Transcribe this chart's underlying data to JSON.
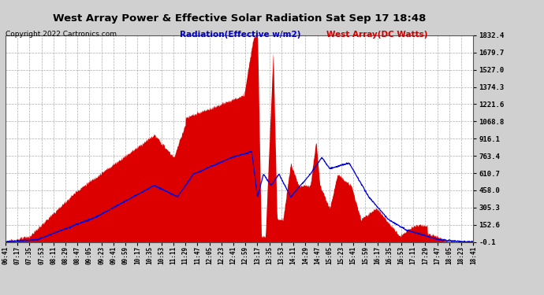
{
  "title": "West Array Power & Effective Solar Radiation Sat Sep 17 18:48",
  "copyright": "Copyright 2022 Cartronics.com",
  "legend_blue": "Radiation(Effective w/m2)",
  "legend_red": "West Array(DC Watts)",
  "yticks": [
    1832.4,
    1679.7,
    1527.0,
    1374.3,
    1221.6,
    1068.8,
    916.1,
    763.4,
    610.7,
    458.0,
    305.3,
    152.6,
    -0.1
  ],
  "ymin": -0.1,
  "ymax": 1832.4,
  "xtick_labels": [
    "06:41",
    "07:17",
    "07:35",
    "07:53",
    "08:11",
    "08:29",
    "08:47",
    "09:05",
    "09:23",
    "09:41",
    "09:59",
    "10:17",
    "10:35",
    "10:53",
    "11:11",
    "11:29",
    "11:47",
    "12:05",
    "12:23",
    "12:41",
    "12:59",
    "13:17",
    "13:35",
    "13:53",
    "14:11",
    "14:29",
    "14:47",
    "15:05",
    "15:23",
    "15:41",
    "15:59",
    "16:17",
    "16:35",
    "16:53",
    "17:11",
    "17:29",
    "17:47",
    "18:05",
    "18:23",
    "18:41"
  ],
  "background_color": "#d0d0d0",
  "plot_bg_color": "#ffffff",
  "grid_color": "#999999",
  "fill_color": "#dd0000",
  "line_color_blue": "#0000dd",
  "title_color": "#000000",
  "copyright_color": "#000000",
  "legend_blue_color": "#0000cc",
  "legend_red_color": "#cc0000"
}
